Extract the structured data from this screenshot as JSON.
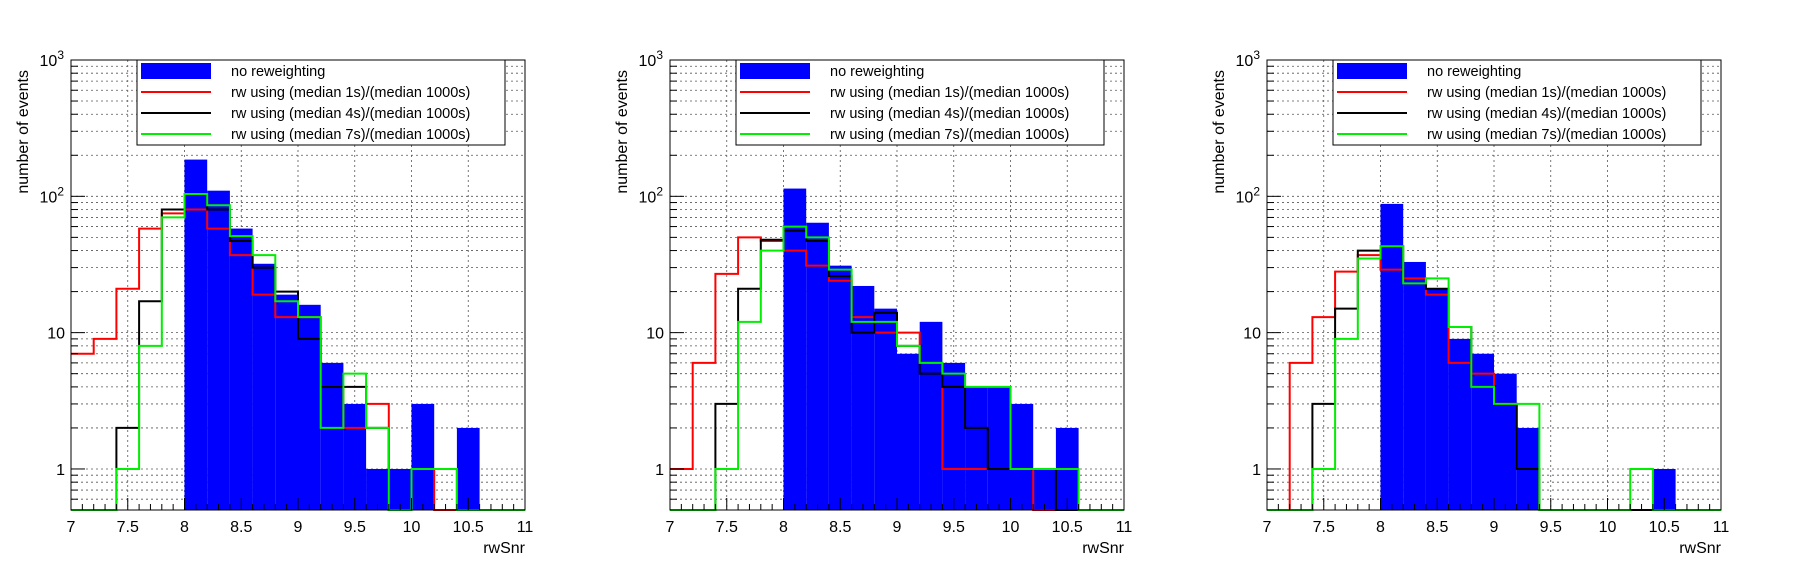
{
  "chart_data": [
    {
      "type": "histogram",
      "xlabel": "rwSnr",
      "ylabel": "number of events",
      "yscale": "log",
      "xlim": [
        7,
        11
      ],
      "ylim": [
        0.5,
        1000
      ],
      "x_ticks": [
        "7",
        "7.5",
        "8",
        "8.5",
        "9",
        "9.5",
        "10",
        "10.5",
        "11"
      ],
      "y_ticks": [
        {
          "v": 1,
          "label": "1"
        },
        {
          "v": 10,
          "label": "10"
        },
        {
          "v": 100,
          "base": "10",
          "exp": "2"
        },
        {
          "v": 1000,
          "base": "10",
          "exp": "3"
        }
      ],
      "grid": true,
      "legend_position": "top",
      "bin_edges": [
        7.0,
        7.2,
        7.4,
        7.6,
        7.8,
        8.0,
        8.2,
        8.4,
        8.6,
        8.8,
        9.0,
        9.2,
        9.4,
        9.6,
        9.8,
        10.0,
        10.2,
        10.4,
        10.6,
        10.8,
        11.0
      ],
      "series": [
        {
          "name": "no reweighting",
          "style": "filled",
          "color": "#0000ff",
          "values": [
            0,
            0,
            0,
            0,
            0,
            186,
            110,
            58,
            32,
            19,
            16,
            6,
            3,
            1,
            1,
            3,
            0,
            2,
            0,
            0
          ]
        },
        {
          "name": "rw using (median 1s)/(median 1000s)",
          "style": "step",
          "color": "#ff0000",
          "values": [
            7,
            9,
            21,
            58,
            75,
            80,
            58,
            37,
            19,
            13,
            13,
            4,
            2,
            3,
            0,
            1,
            0,
            0,
            0,
            0
          ]
        },
        {
          "name": "rw using (median 4s)/(median 1000s)",
          "style": "step",
          "color": "#000000",
          "values": [
            0,
            0,
            2,
            17,
            80,
            104,
            80,
            47,
            30,
            20,
            9,
            4,
            4,
            2,
            0,
            1,
            1,
            0,
            0,
            0
          ]
        },
        {
          "name": "rw using (median 7s)/(median 1000s)",
          "style": "step",
          "color": "#00ee00",
          "values": [
            0,
            0,
            1,
            8,
            70,
            104,
            86,
            51,
            37,
            17,
            13,
            2,
            5,
            2,
            0,
            1,
            1,
            0,
            0,
            0
          ]
        }
      ]
    },
    {
      "type": "histogram",
      "xlabel": "rwSnr",
      "ylabel": "number of events",
      "yscale": "log",
      "xlim": [
        7,
        11
      ],
      "ylim": [
        0.5,
        1000
      ],
      "x_ticks": [
        "7",
        "7.5",
        "8",
        "8.5",
        "9",
        "9.5",
        "10",
        "10.5",
        "11"
      ],
      "y_ticks": [
        {
          "v": 1,
          "label": "1"
        },
        {
          "v": 10,
          "label": "10"
        },
        {
          "v": 100,
          "base": "10",
          "exp": "2"
        },
        {
          "v": 1000,
          "base": "10",
          "exp": "3"
        }
      ],
      "grid": true,
      "legend_position": "top",
      "bin_edges": [
        7.0,
        7.2,
        7.4,
        7.6,
        7.8,
        8.0,
        8.2,
        8.4,
        8.6,
        8.8,
        9.0,
        9.2,
        9.4,
        9.6,
        9.8,
        10.0,
        10.2,
        10.4,
        10.6,
        10.8,
        11.0
      ],
      "series": [
        {
          "name": "no reweighting",
          "style": "filled",
          "color": "#0000ff",
          "values": [
            0,
            0,
            0,
            0,
            0,
            114,
            64,
            31,
            22,
            15,
            7,
            12,
            6,
            4,
            4,
            3,
            1,
            2,
            0,
            0
          ]
        },
        {
          "name": "rw using (median 1s)/(median 1000s)",
          "style": "step",
          "color": "#ff0000",
          "values": [
            1,
            6,
            27,
            50,
            47,
            40,
            31,
            24,
            13,
            10,
            10,
            6,
            1,
            1,
            1,
            1,
            0,
            0,
            0,
            0
          ]
        },
        {
          "name": "rw using (median 4s)/(median 1000s)",
          "style": "step",
          "color": "#000000",
          "values": [
            0,
            0,
            3,
            21,
            48,
            56,
            47,
            26,
            10,
            14,
            8,
            5,
            4,
            2,
            1,
            1,
            1,
            0,
            0,
            0
          ]
        },
        {
          "name": "rw using (median 7s)/(median 1000s)",
          "style": "step",
          "color": "#00ee00",
          "values": [
            0,
            0,
            1,
            12,
            40,
            60,
            50,
            29,
            12,
            12,
            8,
            6,
            5,
            4,
            4,
            1,
            1,
            1,
            0,
            0
          ]
        }
      ]
    },
    {
      "type": "histogram",
      "xlabel": "rwSnr",
      "ylabel": "number of events",
      "yscale": "log",
      "xlim": [
        7,
        11
      ],
      "ylim": [
        0.5,
        1000
      ],
      "x_ticks": [
        "7",
        "7.5",
        "8",
        "8.5",
        "9",
        "9.5",
        "10",
        "10.5",
        "11"
      ],
      "y_ticks": [
        {
          "v": 1,
          "label": "1"
        },
        {
          "v": 10,
          "label": "10"
        },
        {
          "v": 100,
          "base": "10",
          "exp": "2"
        },
        {
          "v": 1000,
          "base": "10",
          "exp": "3"
        }
      ],
      "grid": true,
      "legend_position": "top",
      "bin_edges": [
        7.0,
        7.2,
        7.4,
        7.6,
        7.8,
        8.0,
        8.2,
        8.4,
        8.6,
        8.8,
        9.0,
        9.2,
        9.4,
        9.6,
        9.8,
        10.0,
        10.2,
        10.4,
        10.6,
        10.8,
        11.0
      ],
      "series": [
        {
          "name": "no reweighting",
          "style": "filled",
          "color": "#0000ff",
          "values": [
            0,
            0,
            0,
            0,
            0,
            88,
            33,
            21,
            9,
            7,
            5,
            2,
            0,
            0,
            0,
            0,
            0,
            1,
            0,
            0
          ]
        },
        {
          "name": "rw using (median 1s)/(median 1000s)",
          "style": "step",
          "color": "#ff0000",
          "values": [
            0,
            6,
            13,
            28,
            37,
            29,
            25,
            19,
            6,
            5,
            3,
            1,
            0,
            0,
            0,
            0,
            0,
            0,
            0,
            0
          ]
        },
        {
          "name": "rw using (median 4s)/(median 1000s)",
          "style": "step",
          "color": "#000000",
          "values": [
            0,
            0,
            3,
            15,
            40,
            43,
            23,
            21,
            11,
            4,
            3,
            1,
            0,
            0,
            0,
            0,
            0,
            0,
            0,
            0
          ]
        },
        {
          "name": "rw using (median 7s)/(median 1000s)",
          "style": "step",
          "color": "#00ee00",
          "values": [
            0,
            0,
            1,
            9,
            35,
            43,
            23,
            25,
            11,
            4,
            3,
            3,
            0,
            0,
            0,
            0,
            1,
            0,
            0,
            0
          ]
        }
      ]
    }
  ]
}
